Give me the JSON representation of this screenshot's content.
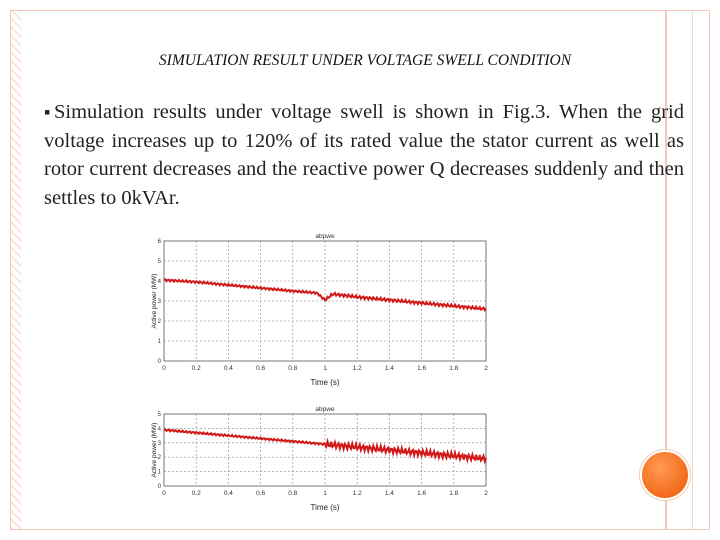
{
  "slide": {
    "title": "SIMULATION RESULT UNDER VOLTAGE SWELL CONDITION",
    "bullet_text": "Simulation results under voltage swell is shown in Fig.3. When the grid voltage increases up to 120% of its rated value the stator current as well as rotor current decreases and the reactive power Q decreases suddenly and then settles to 0kVAr."
  },
  "colors": {
    "trace": "#d01818",
    "frame": "#f2c7b6",
    "accent": "#f36a1a"
  },
  "chart_data": [
    {
      "type": "line",
      "title": "abpwe",
      "xlabel": "Time (s)",
      "ylabel": "Active power (MW)",
      "x_ticks": [
        "0",
        "0.2",
        "0.4",
        "0.6",
        "0.8",
        "1",
        "1.2",
        "1.4",
        "1.6",
        "1.8",
        "2"
      ],
      "xlim": [
        0,
        2
      ],
      "ylim": [
        0,
        6
      ],
      "grid": true,
      "series": [
        {
          "x": [
            0,
            0.2,
            0.4,
            0.6,
            0.8,
            0.95,
            1.0,
            1.05,
            1.2,
            1.4,
            1.6,
            1.8,
            2.0
          ],
          "y": [
            4.05,
            3.95,
            3.8,
            3.65,
            3.5,
            3.4,
            3.05,
            3.35,
            3.2,
            3.05,
            2.9,
            2.75,
            2.6
          ]
        }
      ]
    },
    {
      "type": "line",
      "title": "abpwe",
      "xlabel": "Time (s)",
      "ylabel": "Active power (MW)",
      "x_ticks": [
        "0",
        "0.2",
        "0.4",
        "0.6",
        "0.8",
        "1",
        "1.2",
        "1.4",
        "1.6",
        "1.8",
        "2"
      ],
      "xlim": [
        0,
        2
      ],
      "ylim": [
        0,
        5
      ],
      "grid": true,
      "series": [
        {
          "x": [
            0,
            0.2,
            0.4,
            0.6,
            0.8,
            1.0,
            1.2,
            1.4,
            1.6,
            1.8,
            2.0
          ],
          "y": [
            3.9,
            3.7,
            3.5,
            3.3,
            3.1,
            2.9,
            2.7,
            2.5,
            2.3,
            2.1,
            1.9
          ]
        }
      ]
    }
  ]
}
